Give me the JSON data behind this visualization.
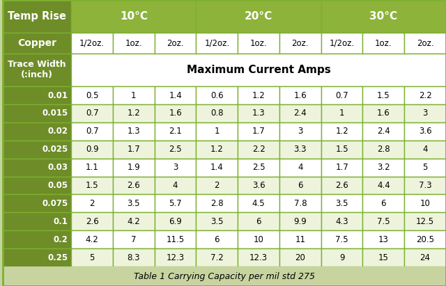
{
  "title_caption": "Table 1 Carrying Capacity per mil std 275",
  "trace_widths": [
    "0.01",
    "0.015",
    "0.02",
    "0.025",
    "0.03",
    "0.05",
    "0.075",
    "0.1",
    "0.2",
    "0.25"
  ],
  "data": [
    [
      0.5,
      1,
      1.4,
      0.6,
      1.2,
      1.6,
      0.7,
      1.5,
      2.2
    ],
    [
      0.7,
      1.2,
      1.6,
      0.8,
      1.3,
      2.4,
      1,
      1.6,
      3
    ],
    [
      0.7,
      1.3,
      2.1,
      1,
      1.7,
      3,
      1.2,
      2.4,
      3.6
    ],
    [
      0.9,
      1.7,
      2.5,
      1.2,
      2.2,
      3.3,
      1.5,
      2.8,
      4
    ],
    [
      1.1,
      1.9,
      3,
      1.4,
      2.5,
      4,
      1.7,
      3.2,
      5
    ],
    [
      1.5,
      2.6,
      4,
      2,
      3.6,
      6,
      2.6,
      4.4,
      7.3
    ],
    [
      2,
      3.5,
      5.7,
      2.8,
      4.5,
      7.8,
      3.5,
      6,
      10
    ],
    [
      2.6,
      4.2,
      6.9,
      3.5,
      6,
      9.9,
      4.3,
      7.5,
      12.5
    ],
    [
      4.2,
      7,
      11.5,
      6,
      10,
      11,
      7.5,
      13,
      20.5
    ],
    [
      5,
      8.3,
      12.3,
      7.2,
      12.3,
      20,
      9,
      15,
      24
    ]
  ],
  "col_labels": [
    "1/2oz.",
    "1oz.",
    "2oz.",
    "1/2oz.",
    "1oz.",
    "2oz.",
    "1/2oz.",
    "1oz.",
    "2oz."
  ],
  "color_header_dark": "#6E8C28",
  "color_header_light": "#8DB33A",
  "color_row_even": "#FFFFFF",
  "color_row_odd": "#EEF4DC",
  "color_grid_line": "#7DB030",
  "color_text_header": "#FFFFFF",
  "color_text_data": "#000000",
  "color_background": "#C8D4A0",
  "fig_width": 6.4,
  "fig_height": 4.11
}
